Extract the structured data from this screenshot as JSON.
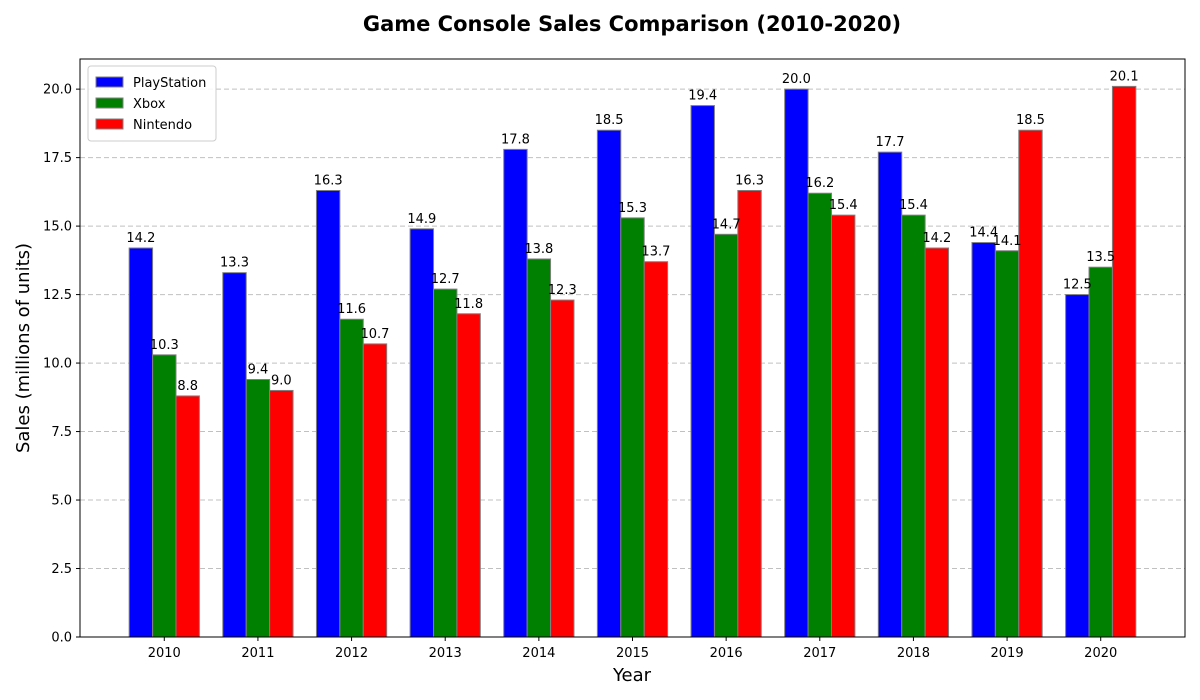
{
  "chart_data": {
    "type": "bar",
    "title": "Game Console Sales Comparison (2010-2020)",
    "xlabel": "Year",
    "ylabel": "Sales (millions of units)",
    "categories": [
      "2010",
      "2011",
      "2012",
      "2013",
      "2014",
      "2015",
      "2016",
      "2017",
      "2018",
      "2019",
      "2020"
    ],
    "series": [
      {
        "name": "PlayStation",
        "color": "#0000ff",
        "values": [
          14.2,
          13.3,
          16.3,
          14.9,
          17.8,
          18.5,
          19.4,
          20.0,
          17.7,
          14.4,
          12.5
        ]
      },
      {
        "name": "Xbox",
        "color": "#008000",
        "values": [
          10.3,
          9.4,
          11.6,
          12.7,
          13.8,
          15.3,
          14.7,
          16.2,
          15.4,
          14.1,
          13.5
        ]
      },
      {
        "name": "Nintendo",
        "color": "#ff0000",
        "values": [
          8.8,
          9.0,
          10.7,
          11.8,
          12.3,
          13.7,
          16.3,
          15.4,
          14.2,
          18.5,
          20.1
        ]
      }
    ],
    "data_label_precision": 1,
    "ylim": [
      0,
      21.1
    ],
    "yticks": [
      0.0,
      2.5,
      5.0,
      7.5,
      10.0,
      12.5,
      15.0,
      17.5,
      20.0
    ],
    "grid": "y-dashed",
    "legend_position": "top-left"
  }
}
